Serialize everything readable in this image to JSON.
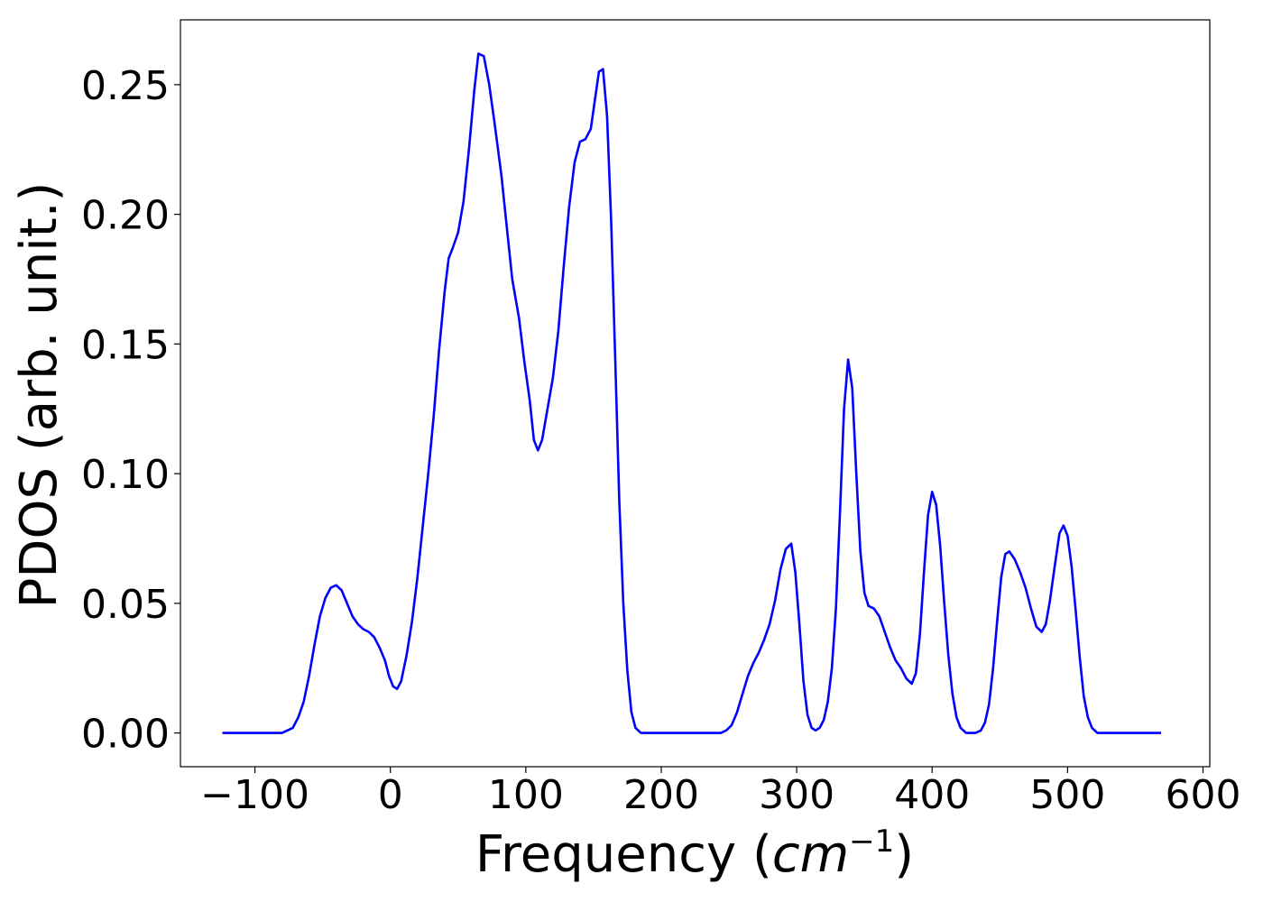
{
  "chart_data": {
    "type": "line",
    "title": "",
    "xlabel": "Frequency (",
    "xlabel_math": "cm",
    "xlabel_sup": "−1",
    "xlabel_close": ")",
    "ylabel": "PDOS (arb. unit.)",
    "xlim": [
      -155,
      605
    ],
    "ylim": [
      -0.013,
      0.275
    ],
    "xticks": [
      -100,
      0,
      100,
      200,
      300,
      400,
      500,
      600
    ],
    "xtick_labels": [
      "−100",
      "0",
      "100",
      "200",
      "300",
      "400",
      "500",
      "600"
    ],
    "yticks": [
      0.0,
      0.05,
      0.1,
      0.15,
      0.2,
      0.25
    ],
    "ytick_labels": [
      "0.00",
      "0.05",
      "0.10",
      "0.15",
      "0.20",
      "0.25"
    ],
    "grid": false,
    "line_color": "#0000ff",
    "series": [
      {
        "points": [
          [
            -124,
            0.0
          ],
          [
            -80,
            0.0
          ],
          [
            -72,
            0.002
          ],
          [
            -68,
            0.006
          ],
          [
            -64,
            0.012
          ],
          [
            -60,
            0.022
          ],
          [
            -56,
            0.034
          ],
          [
            -52,
            0.045
          ],
          [
            -48,
            0.052
          ],
          [
            -44,
            0.056
          ],
          [
            -40,
            0.057
          ],
          [
            -36,
            0.055
          ],
          [
            -32,
            0.05
          ],
          [
            -28,
            0.045
          ],
          [
            -24,
            0.042
          ],
          [
            -20,
            0.04
          ],
          [
            -16,
            0.039
          ],
          [
            -12,
            0.037
          ],
          [
            -8,
            0.033
          ],
          [
            -4,
            0.028
          ],
          [
            -1,
            0.022
          ],
          [
            2,
            0.018
          ],
          [
            5,
            0.017
          ],
          [
            8,
            0.02
          ],
          [
            12,
            0.03
          ],
          [
            16,
            0.043
          ],
          [
            20,
            0.06
          ],
          [
            24,
            0.08
          ],
          [
            28,
            0.1
          ],
          [
            32,
            0.122
          ],
          [
            36,
            0.148
          ],
          [
            40,
            0.17
          ],
          [
            43,
            0.183
          ],
          [
            46,
            0.187
          ],
          [
            50,
            0.193
          ],
          [
            54,
            0.205
          ],
          [
            58,
            0.225
          ],
          [
            62,
            0.248
          ],
          [
            65,
            0.262
          ],
          [
            69,
            0.261
          ],
          [
            73,
            0.25
          ],
          [
            77,
            0.235
          ],
          [
            82,
            0.215
          ],
          [
            86,
            0.195
          ],
          [
            90,
            0.175
          ],
          [
            95,
            0.16
          ],
          [
            99,
            0.143
          ],
          [
            103,
            0.128
          ],
          [
            106,
            0.113
          ],
          [
            109,
            0.109
          ],
          [
            112,
            0.113
          ],
          [
            116,
            0.125
          ],
          [
            120,
            0.137
          ],
          [
            124,
            0.155
          ],
          [
            128,
            0.18
          ],
          [
            132,
            0.203
          ],
          [
            136,
            0.22
          ],
          [
            140,
            0.228
          ],
          [
            144,
            0.229
          ],
          [
            148,
            0.233
          ],
          [
            151,
            0.244
          ],
          [
            154,
            0.255
          ],
          [
            157,
            0.256
          ],
          [
            160,
            0.238
          ],
          [
            163,
            0.198
          ],
          [
            166,
            0.145
          ],
          [
            169,
            0.09
          ],
          [
            172,
            0.05
          ],
          [
            175,
            0.024
          ],
          [
            178,
            0.008
          ],
          [
            181,
            0.002
          ],
          [
            185,
            0.0
          ],
          [
            244,
            0.0
          ],
          [
            248,
            0.001
          ],
          [
            252,
            0.003
          ],
          [
            256,
            0.008
          ],
          [
            260,
            0.015
          ],
          [
            264,
            0.022
          ],
          [
            268,
            0.027
          ],
          [
            272,
            0.031
          ],
          [
            276,
            0.036
          ],
          [
            280,
            0.042
          ],
          [
            284,
            0.051
          ],
          [
            288,
            0.063
          ],
          [
            292,
            0.071
          ],
          [
            296,
            0.073
          ],
          [
            299,
            0.062
          ],
          [
            302,
            0.042
          ],
          [
            305,
            0.02
          ],
          [
            308,
            0.007
          ],
          [
            311,
            0.002
          ],
          [
            314,
            0.001
          ],
          [
            317,
            0.002
          ],
          [
            320,
            0.005
          ],
          [
            323,
            0.012
          ],
          [
            326,
            0.025
          ],
          [
            329,
            0.048
          ],
          [
            332,
            0.085
          ],
          [
            335,
            0.125
          ],
          [
            338,
            0.144
          ],
          [
            341,
            0.133
          ],
          [
            344,
            0.1
          ],
          [
            347,
            0.07
          ],
          [
            350,
            0.054
          ],
          [
            353,
            0.049
          ],
          [
            357,
            0.048
          ],
          [
            361,
            0.045
          ],
          [
            365,
            0.039
          ],
          [
            369,
            0.033
          ],
          [
            373,
            0.028
          ],
          [
            377,
            0.025
          ],
          [
            381,
            0.021
          ],
          [
            385,
            0.019
          ],
          [
            388,
            0.023
          ],
          [
            391,
            0.038
          ],
          [
            394,
            0.062
          ],
          [
            397,
            0.084
          ],
          [
            400,
            0.093
          ],
          [
            403,
            0.088
          ],
          [
            406,
            0.072
          ],
          [
            409,
            0.05
          ],
          [
            412,
            0.03
          ],
          [
            415,
            0.015
          ],
          [
            418,
            0.006
          ],
          [
            421,
            0.002
          ],
          [
            425,
            0.0
          ],
          [
            432,
            0.0
          ],
          [
            436,
            0.001
          ],
          [
            439,
            0.004
          ],
          [
            442,
            0.011
          ],
          [
            445,
            0.025
          ],
          [
            448,
            0.043
          ],
          [
            451,
            0.06
          ],
          [
            454,
            0.069
          ],
          [
            457,
            0.07
          ],
          [
            461,
            0.067
          ],
          [
            465,
            0.062
          ],
          [
            469,
            0.056
          ],
          [
            473,
            0.048
          ],
          [
            477,
            0.041
          ],
          [
            481,
            0.039
          ],
          [
            484,
            0.042
          ],
          [
            487,
            0.051
          ],
          [
            491,
            0.066
          ],
          [
            494,
            0.077
          ],
          [
            497,
            0.08
          ],
          [
            500,
            0.076
          ],
          [
            503,
            0.064
          ],
          [
            506,
            0.047
          ],
          [
            509,
            0.029
          ],
          [
            512,
            0.014
          ],
          [
            515,
            0.006
          ],
          [
            518,
            0.002
          ],
          [
            522,
            0.0
          ],
          [
            569,
            0.0
          ]
        ]
      }
    ]
  }
}
